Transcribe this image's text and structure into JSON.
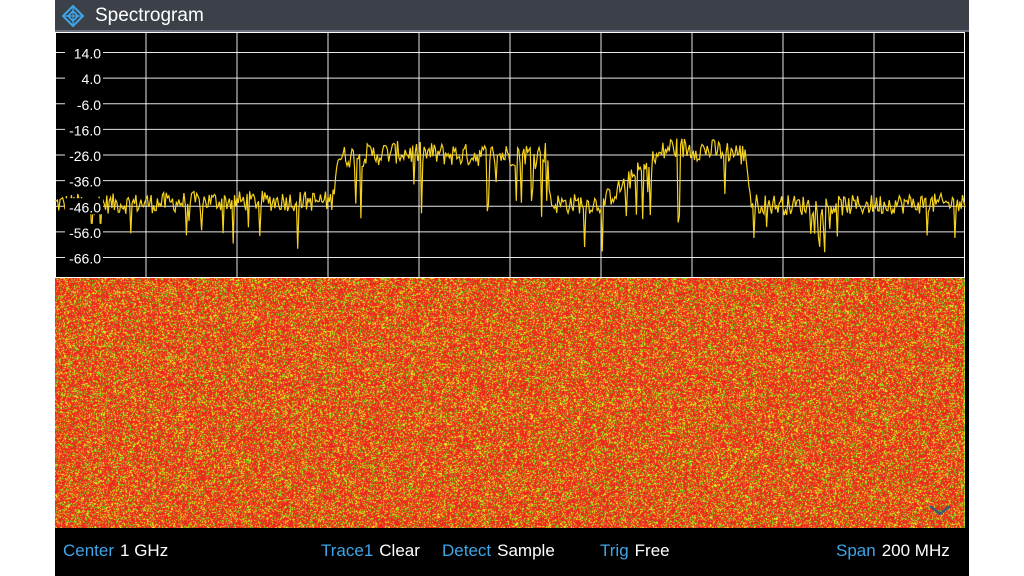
{
  "window": {
    "title": "Spectrogram",
    "icon": "rohde-schwarz-diamond-logo"
  },
  "trace_panel": {
    "y_ticks": [
      "14.0",
      "4.0",
      "-6.0",
      "-16.0",
      "-26.0",
      "-36.0",
      "-46.0",
      "-56.0",
      "-66.0"
    ],
    "trace_color": "#f5d21e",
    "grid_color": "#ffffff",
    "grid_divisions_x": 10
  },
  "chart_data": {
    "type": "line",
    "title": "",
    "xlabel": "",
    "ylabel": "",
    "ylim": [
      -74,
      22
    ],
    "xlim": [
      900,
      1100
    ],
    "series": [
      {
        "x": [
          900,
          917,
          934,
          950,
          961,
          962,
          975,
          990,
          1000,
          1008,
          1009,
          1020,
          1035,
          1050,
          1052,
          1053,
          1070,
          1085,
          1100
        ],
        "values": [
          -45,
          -45,
          -44,
          -44,
          -44,
          -27,
          -25,
          -26,
          -26,
          -25,
          -45,
          -45,
          -23,
          -25,
          -27,
          -45,
          -46,
          -45,
          -45
        ]
      }
    ]
  },
  "spectrogram": {
    "colors": {
      "noise_green": "#66d21e",
      "noise_yellow": "#eef01a",
      "signal_red": "#ee2820",
      "signal_orange": "#f07a1c"
    },
    "signal_band_mhz": [
      950,
      1050
    ]
  },
  "status_bar": {
    "center_label": "Center",
    "center_value": "1 GHz",
    "trace_label": "Trace1",
    "trace_value": "Clear",
    "detect_label": "Detect",
    "detect_value": "Sample",
    "trig_label": "Trig",
    "trig_value": "Free",
    "span_label": "Span",
    "span_value": "200 MHz"
  }
}
